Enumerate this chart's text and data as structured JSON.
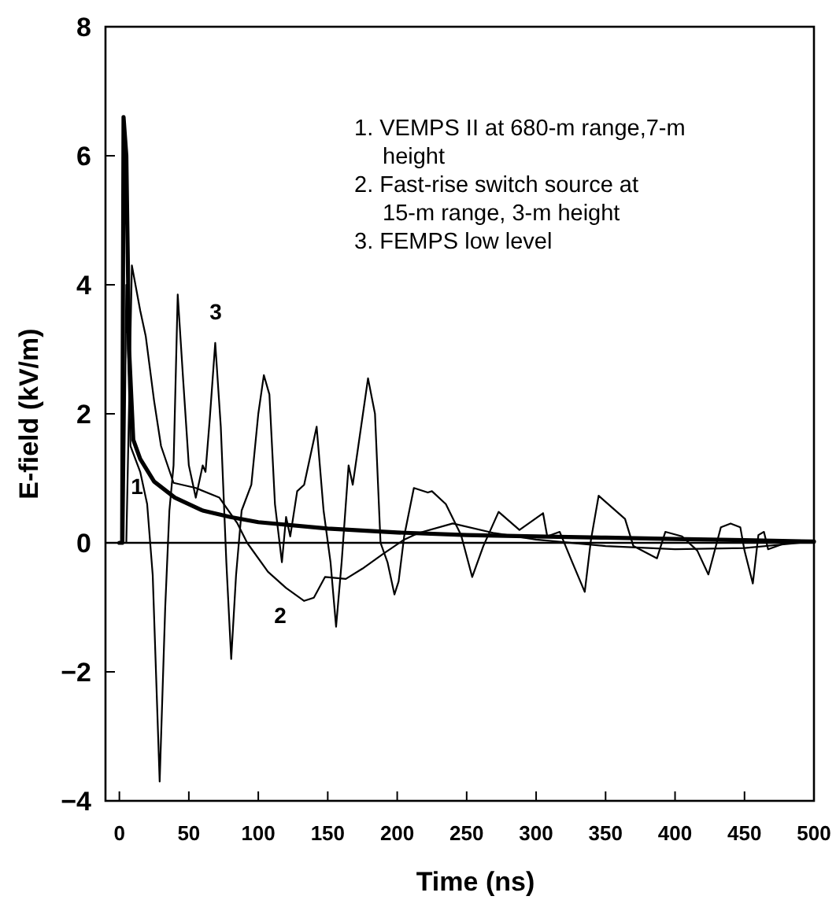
{
  "chart_data": {
    "type": "line",
    "xlabel": "Time (ns)",
    "ylabel": "E-field (kV/m)",
    "xlim": [
      -10,
      500
    ],
    "ylim": [
      -4,
      8
    ],
    "xticks": [
      0,
      50,
      100,
      150,
      200,
      250,
      300,
      350,
      400,
      450,
      500
    ],
    "yticks": [
      {
        "value": -4,
        "label": "−4"
      },
      {
        "value": -2,
        "label": "−2"
      },
      0,
      2,
      4,
      6,
      8
    ],
    "grid": false,
    "marker": "none",
    "line_style": "solid",
    "ref_lines": [
      {
        "axis": "y",
        "value": 0,
        "color": "#000000"
      }
    ],
    "annotations": [
      "1. VEMPS II at 680-m range,7-m height",
      "2. Fast-rise switch source at 15-m range, 3-m height",
      "3. FEMPS low level",
      "1",
      "2",
      "3"
    ],
    "series": [
      {
        "color": "#000000",
        "x": [
          0,
          2,
          3,
          5,
          7,
          10,
          15,
          25,
          40,
          60,
          80,
          100,
          150,
          200,
          250,
          300,
          350,
          400,
          450,
          500
        ],
        "values": [
          0,
          0,
          6.6,
          6.0,
          3.0,
          1.6,
          1.3,
          0.95,
          0.7,
          0.5,
          0.4,
          0.32,
          0.22,
          0.16,
          0.12,
          0.1,
          0.08,
          0.06,
          0.04,
          0.02
        ]
      },
      {
        "color": "#000000",
        "x": [
          0,
          5,
          9,
          15,
          19,
          25,
          30,
          39,
          55,
          72,
          85,
          92,
          107,
          120,
          133,
          140,
          148,
          163,
          175,
          190,
          205,
          215,
          240,
          270,
          300,
          350,
          400,
          450,
          490,
          500
        ],
        "values": [
          0,
          0,
          4.3,
          3.6,
          3.2,
          2.2,
          1.5,
          0.93,
          0.85,
          0.7,
          0.3,
          0,
          -0.45,
          -0.7,
          -0.9,
          -0.85,
          -0.53,
          -0.56,
          -0.4,
          -0.17,
          0.05,
          0.15,
          0.3,
          0.15,
          0.05,
          -0.05,
          -0.1,
          -0.08,
          0,
          0
        ]
      },
      {
        "color": "#000000",
        "x": [
          0,
          3,
          5,
          8,
          15,
          20,
          24,
          29,
          33,
          36,
          39,
          42,
          46,
          50,
          55,
          60,
          62,
          65,
          69,
          73,
          77,
          80.5,
          84,
          88,
          95,
          100,
          104,
          108,
          112,
          117,
          120,
          123,
          128,
          133,
          142,
          147,
          152,
          156,
          160,
          165,
          168,
          172,
          179,
          184,
          188,
          193,
          198,
          201,
          205,
          212,
          222,
          225,
          235,
          246,
          254,
          262,
          273,
          288,
          305,
          308,
          317,
          326,
          335,
          339.5,
          345,
          364,
          370,
          387,
          393,
          405,
          416,
          424,
          433,
          440,
          447,
          450,
          456,
          460,
          464,
          467,
          480,
          500
        ],
        "values": [
          0,
          0,
          4.0,
          1.5,
          1.1,
          0.6,
          -0.5,
          -3.7,
          -1.0,
          0.5,
          1.2,
          3.85,
          2.5,
          1.2,
          0.7,
          1.2,
          1.1,
          1.9,
          3.1,
          1.8,
          -0.3,
          -1.8,
          -0.5,
          0.5,
          0.9,
          2.0,
          2.6,
          2.3,
          0.6,
          -0.3,
          0.4,
          0.1,
          0.8,
          0.9,
          1.8,
          0.5,
          -0.3,
          -1.3,
          -0.3,
          1.2,
          0.9,
          1.5,
          2.55,
          2.0,
          0,
          -0.3,
          -0.8,
          -0.6,
          0.1,
          0.85,
          0.78,
          0.8,
          0.6,
          0.12,
          -0.53,
          -0.05,
          0.48,
          0.2,
          0.46,
          0.1,
          0.17,
          -0.3,
          -0.76,
          0.05,
          0.73,
          0.37,
          -0.05,
          -0.24,
          0.17,
          0.1,
          -0.12,
          -0.49,
          0.24,
          0.3,
          0.24,
          -0.12,
          -0.63,
          0.12,
          0.17,
          -0.1,
          0,
          0
        ]
      }
    ]
  }
}
